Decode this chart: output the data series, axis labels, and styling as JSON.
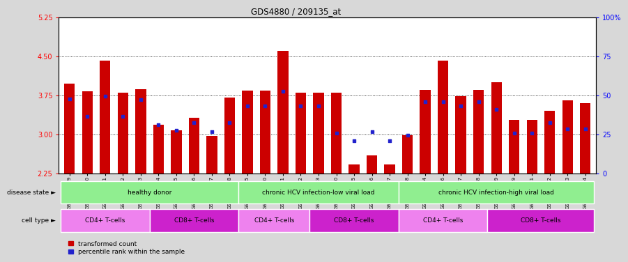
{
  "title": "GDS4880 / 209135_at",
  "samples": [
    "GSM1210739",
    "GSM1210740",
    "GSM1210741",
    "GSM1210742",
    "GSM1210743",
    "GSM1210754",
    "GSM1210755",
    "GSM1210756",
    "GSM1210757",
    "GSM1210758",
    "GSM1210745",
    "GSM1210750",
    "GSM1210751",
    "GSM1210752",
    "GSM1210753",
    "GSM1210760",
    "GSM1210765",
    "GSM1210766",
    "GSM1210767",
    "GSM1210768",
    "GSM1210744",
    "GSM1210746",
    "GSM1210747",
    "GSM1210748",
    "GSM1210749",
    "GSM1210759",
    "GSM1210761",
    "GSM1210762",
    "GSM1210763",
    "GSM1210764"
  ],
  "bar_values": [
    3.97,
    3.82,
    4.42,
    3.8,
    3.87,
    3.18,
    3.08,
    3.32,
    2.97,
    3.7,
    3.84,
    3.84,
    4.6,
    3.8,
    3.8,
    3.8,
    2.42,
    2.6,
    2.42,
    2.98,
    3.85,
    4.42,
    3.73,
    3.85,
    4.0,
    3.28,
    3.28,
    3.45,
    3.65,
    3.6
  ],
  "blue_values": [
    3.68,
    3.35,
    3.73,
    3.35,
    3.67,
    3.18,
    3.08,
    3.22,
    3.05,
    3.22,
    3.55,
    3.55,
    3.82,
    3.55,
    3.55,
    3.02,
    2.87,
    3.05,
    2.87,
    2.98,
    3.63,
    3.63,
    3.55,
    3.63,
    3.48,
    3.02,
    3.02,
    3.22,
    3.1,
    3.1
  ],
  "ymin": 2.25,
  "ymax": 5.25,
  "yticks": [
    2.25,
    3.0,
    3.75,
    4.5,
    5.25
  ],
  "right_yticks": [
    0,
    25,
    50,
    75,
    100
  ],
  "bar_color": "#cc0000",
  "blue_color": "#2222cc",
  "fig_bg": "#d8d8d8",
  "plot_bg": "#ffffff",
  "disease_groups": [
    {
      "label": "healthy donor",
      "start": 0,
      "end": 9
    },
    {
      "label": "chronic HCV infection-low viral load",
      "start": 10,
      "end": 18
    },
    {
      "label": "chronic HCV infection-high viral load",
      "start": 19,
      "end": 29
    }
  ],
  "cell_groups": [
    {
      "label": "CD4+ T-cells",
      "start": 0,
      "end": 4,
      "color": "#ee82ee"
    },
    {
      "label": "CD8+ T-cells",
      "start": 5,
      "end": 9,
      "color": "#cc22cc"
    },
    {
      "label": "CD4+ T-cells",
      "start": 10,
      "end": 13,
      "color": "#ee82ee"
    },
    {
      "label": "CD8+ T-cells",
      "start": 14,
      "end": 18,
      "color": "#cc22cc"
    },
    {
      "label": "CD4+ T-cells",
      "start": 19,
      "end": 23,
      "color": "#ee82ee"
    },
    {
      "label": "CD8+ T-cells",
      "start": 24,
      "end": 29,
      "color": "#cc22cc"
    }
  ],
  "disease_color": "#90ee90",
  "disease_state_label": "disease state",
  "cell_type_label": "cell type",
  "legend_red": "transformed count",
  "legend_blue": "percentile rank within the sample"
}
